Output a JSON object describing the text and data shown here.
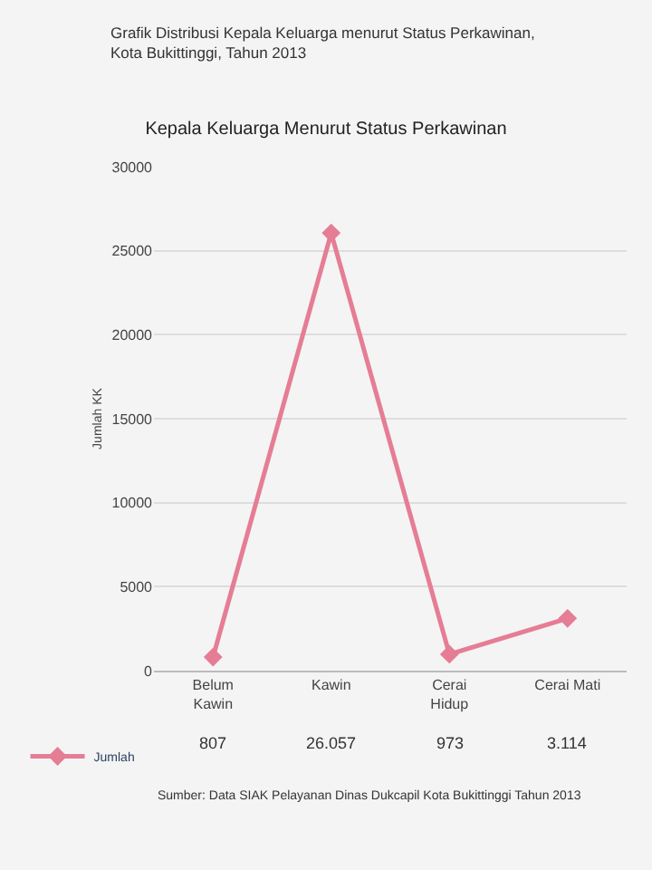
{
  "chart_data": {
    "type": "line",
    "subtitle": "Grafik Distribusi Kepala Keluarga menurut Status Perkawinan, Kota Bukittinggi, Tahun 2013",
    "title": "Kepala Keluarga Menurut Status Perkawinan",
    "ylabel": "Jumlah KK",
    "categories": [
      "Belum Kawin",
      "Kawin",
      "Cerai Hidup",
      "Cerai Mati"
    ],
    "series": [
      {
        "name": "Jumlah",
        "color": "#e57d95",
        "values": [
          807,
          26057,
          973,
          3114
        ],
        "value_labels": [
          "807",
          "26.057",
          "973",
          "3.114"
        ]
      }
    ],
    "ylim": [
      0,
      30000
    ],
    "yticks": [
      0,
      5000,
      10000,
      15000,
      20000,
      25000,
      30000
    ],
    "grid": "y",
    "marker": "diamond",
    "line_style": "solid",
    "legend": "bottom left",
    "annotations": [
      "Sumber: Data SIAK Pelayanan Dinas Dukcapil Kota Bukittinggi Tahun 2013"
    ]
  }
}
